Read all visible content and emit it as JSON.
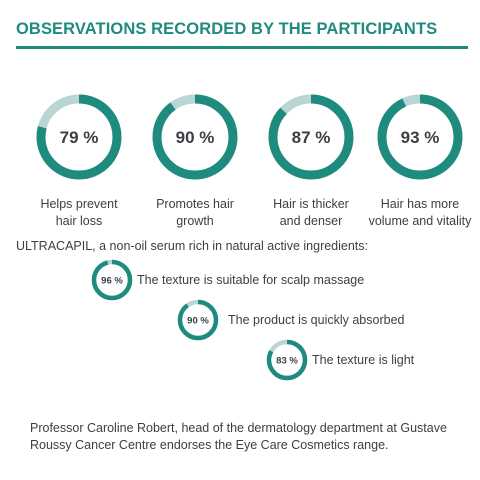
{
  "heading": "OBSERVATIONS RECORDED BY THE PARTICIPANTS",
  "colors": {
    "accent": "#1f8a7e",
    "track": "#b9d6d4",
    "text": "#3b3f44"
  },
  "chart_data": [
    {
      "type": "donut",
      "items": [
        {
          "value": 79,
          "value_label": "79 %",
          "label_line1": "Helps prevent",
          "label_line2": "hair loss"
        },
        {
          "value": 90,
          "value_label": "90 %",
          "label_line1": "Promotes hair",
          "label_line2": "growth"
        },
        {
          "value": 87,
          "value_label": "87 %",
          "label_line1": "Hair is thicker",
          "label_line2": "and denser"
        },
        {
          "value": 93,
          "value_label": "93 %",
          "label_line1": "Hair has more",
          "label_line2": "volume and vitality"
        }
      ]
    },
    {
      "type": "donut",
      "intro": "ULTRACAPIL, a non-oil serum rich in natural active ingredients:",
      "items": [
        {
          "value": 96,
          "value_label": "96 %",
          "label": "The texture is suitable for scalp massage"
        },
        {
          "value": 90,
          "value_label": "90 %",
          "label": "The product is quickly absorbed"
        },
        {
          "value": 83,
          "value_label": "83 %",
          "label": "The texture is light"
        }
      ]
    }
  ],
  "footer": "Professor Caroline Robert, head of the dermatology department at Gustave Roussy Cancer Centre endorses the Eye Care Cosmetics range."
}
